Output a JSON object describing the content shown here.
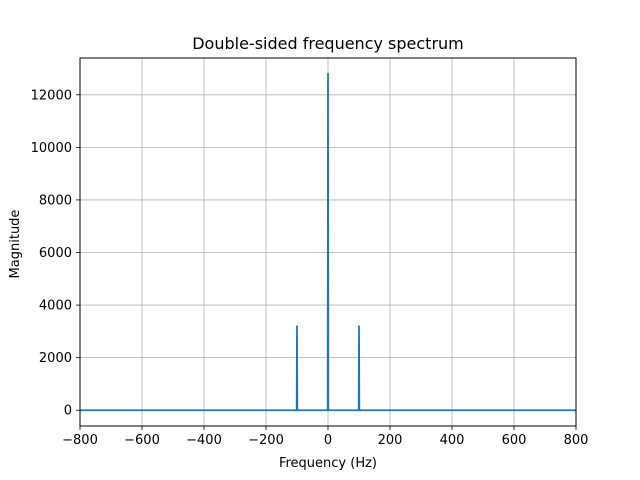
{
  "chart_data": {
    "type": "line",
    "title": "Double-sided frequency spectrum",
    "xlabel": "Frequency (Hz)",
    "ylabel": "Magnitude",
    "xlim": [
      -800,
      800
    ],
    "ylim": [
      -600,
      13400
    ],
    "xticks": [
      -800,
      -600,
      -400,
      -200,
      0,
      200,
      400,
      600,
      800
    ],
    "yticks": [
      0,
      2000,
      4000,
      6000,
      8000,
      10000,
      12000
    ],
    "grid": true,
    "series": [
      {
        "color": "#1f77b4",
        "x": [
          -800,
          -101,
          -100,
          -99,
          -1,
          0,
          1,
          99,
          100,
          101,
          800
        ],
        "y": [
          0,
          0,
          3200,
          0,
          0,
          12800,
          0,
          0,
          3200,
          0,
          0
        ]
      }
    ]
  }
}
